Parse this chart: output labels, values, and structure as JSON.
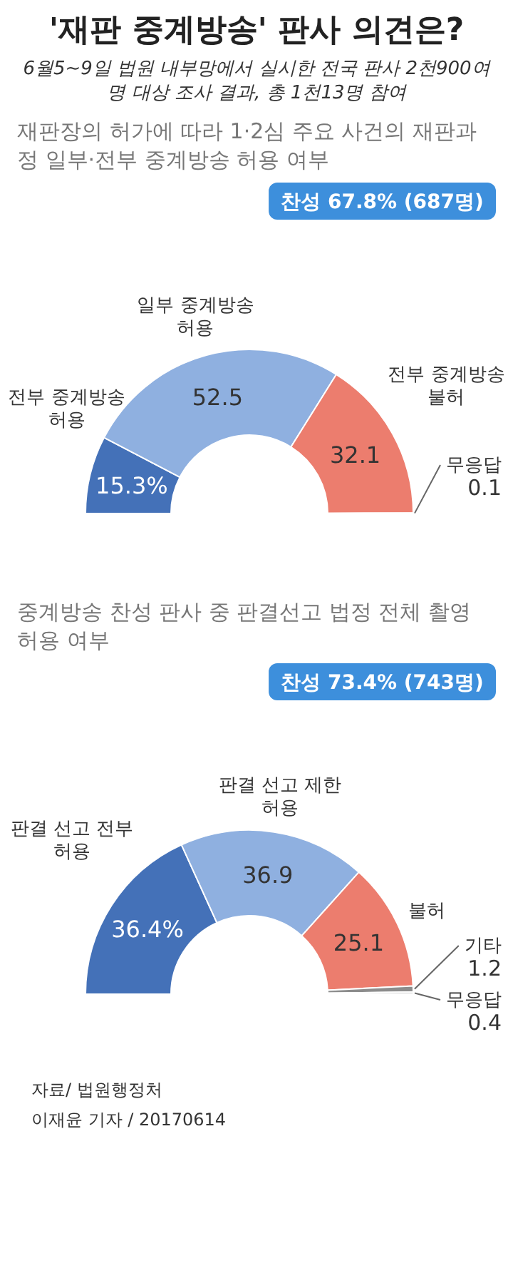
{
  "chart_data": [
    {
      "type": "other",
      "title": "'재판 중계방송' 판사 의견은?",
      "subtitle": "6월5~9일 법원 내부망에서 실시한 전국 판사 2천900여명 대상 조사 결과, 총 1천13명 참여"
    },
    {
      "type": "donut",
      "title": "재판장의 허가에 따라 1·2심 주요 사건의 재판과정 일부·전부 중계방송 허용 여부",
      "categories": [
        "전부 중계방송 허용",
        "일부 중계방송 허용",
        "전부 중계방송 불허",
        "무응답"
      ],
      "values": [
        15.3,
        52.5,
        32.1,
        0.1
      ],
      "value_labels": [
        "15.3%",
        "52.5",
        "32.1",
        "0.1"
      ],
      "colors": [
        "#4471b8",
        "#8fb0e0",
        "#ec7d6e",
        "#9a9a9a"
      ],
      "annotations": [
        "찬성 67.8% (687명)"
      ]
    },
    {
      "type": "donut",
      "title": "중계방송 찬성 판사 중 판결선고 법정 전체 촬영 허용 여부",
      "categories": [
        "판결 선고 전부 허용",
        "판결 선고 제한 허용",
        "불허",
        "기타",
        "무응답"
      ],
      "values": [
        36.4,
        36.9,
        25.1,
        1.2,
        0.4
      ],
      "value_labels": [
        "36.4%",
        "36.9",
        "25.1",
        "1.2",
        "0.4"
      ],
      "colors": [
        "#4471b8",
        "#8fb0e0",
        "#ec7d6e",
        "#8c8c8c",
        "#c4c4c4"
      ],
      "annotations": [
        "찬성 73.4% (743명)"
      ]
    },
    {
      "type": "other",
      "annotations": [
        "자료/ 법원행정처",
        "이재윤 기자 / 20170614"
      ]
    }
  ]
}
